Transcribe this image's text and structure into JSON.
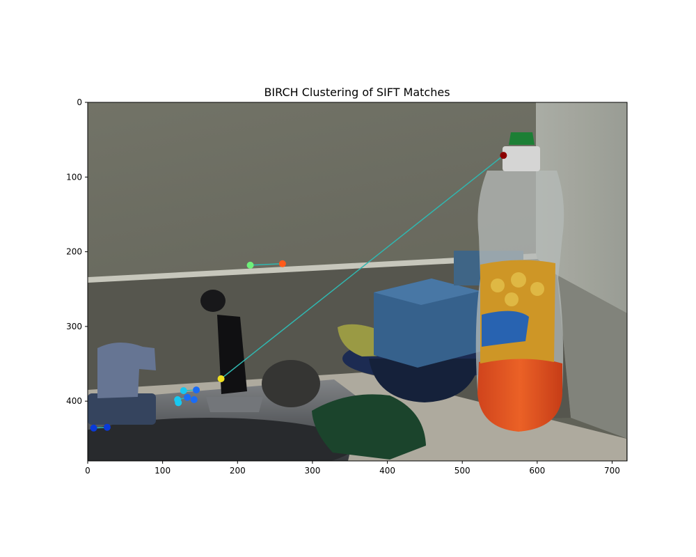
{
  "chart_data": {
    "type": "scatter",
    "title": "BIRCH Clustering of SIFT Matches",
    "xlabel": "",
    "ylabel": "",
    "xlim": [
      0,
      720
    ],
    "ylim": [
      480,
      0
    ],
    "y_inverted": true,
    "grid": false,
    "legend": "none",
    "background": "photograph of a kitchen sink counter with faucet, sprayer, sponges and a Brillo dish soap bottle",
    "x_ticks": [
      0,
      100,
      200,
      300,
      400,
      500,
      600,
      700
    ],
    "y_ticks": [
      0,
      100,
      200,
      300,
      400
    ],
    "match_lines": [
      {
        "x1": 178,
        "y1": 370,
        "x2": 555,
        "y2": 71,
        "color": "#30b7b0"
      },
      {
        "x1": 217,
        "y1": 218,
        "x2": 260,
        "y2": 216,
        "color": "#30b7b0"
      },
      {
        "x1": 8,
        "y1": 436,
        "x2": 26,
        "y2": 435,
        "color": "#30b7b0"
      },
      {
        "x1": 128,
        "y1": 386,
        "x2": 145,
        "y2": 385,
        "color": "#30b7b0"
      },
      {
        "x1": 120,
        "y1": 398,
        "x2": 133,
        "y2": 395,
        "color": "#30b7b0"
      }
    ],
    "points": [
      {
        "x": 555,
        "y": 71,
        "color": "#8b0000"
      },
      {
        "x": 178,
        "y": 370,
        "color": "#f0e020"
      },
      {
        "x": 217,
        "y": 218,
        "color": "#6ef07a"
      },
      {
        "x": 260,
        "y": 216,
        "color": "#ff5a1a"
      },
      {
        "x": 128,
        "y": 386,
        "color": "#18c8f0"
      },
      {
        "x": 145,
        "y": 385,
        "color": "#1a6cf5"
      },
      {
        "x": 120,
        "y": 398,
        "color": "#18c8f0"
      },
      {
        "x": 121,
        "y": 402,
        "color": "#18c8f0"
      },
      {
        "x": 133,
        "y": 395,
        "color": "#1a6cf5"
      },
      {
        "x": 142,
        "y": 398,
        "color": "#1a6cf5"
      },
      {
        "x": 8,
        "y": 436,
        "color": "#0a3ad8"
      },
      {
        "x": 26,
        "y": 435,
        "color": "#0a3ad8"
      }
    ]
  }
}
